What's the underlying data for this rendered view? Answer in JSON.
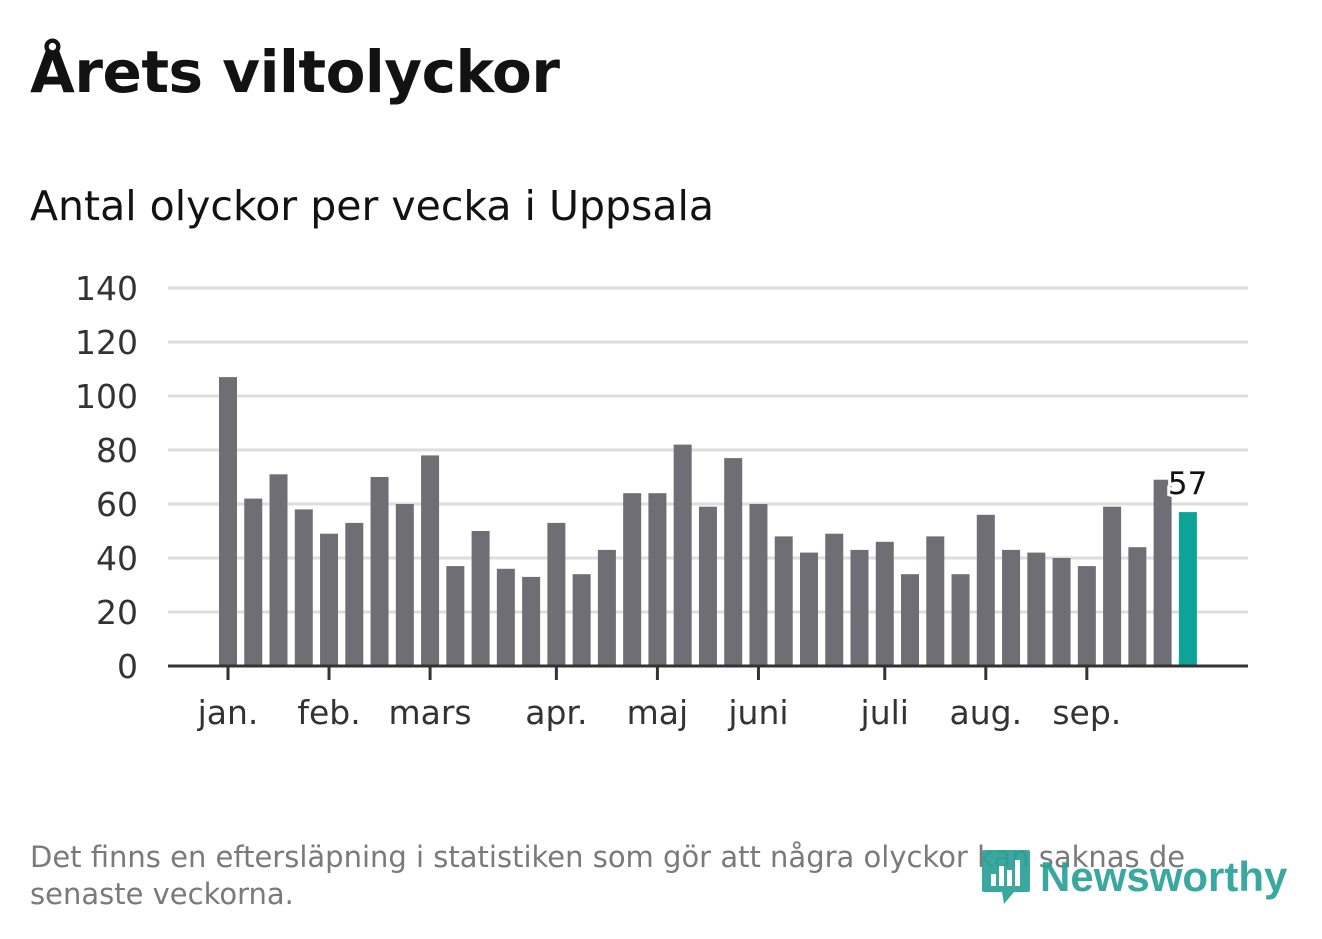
{
  "title": "Årets viltolyckor",
  "subtitle": "Antal olyckor per vecka i Uppsala",
  "note": "Det finns en eftersläpning i statistiken som gör att några olyckor kan saknas de senaste veckorna.",
  "logo": {
    "text": "Newsworthy",
    "icon": "newsworthy-bars-icon"
  },
  "colors": {
    "bar": "#6f6e74",
    "highlight": "#0ea396",
    "grid": "#dddddd",
    "axis": "#333333"
  },
  "chart_data": {
    "type": "bar",
    "title": "Antal olyckor per vecka i Uppsala",
    "xlabel": "",
    "ylabel": "",
    "ylim": [
      0,
      140
    ],
    "yticks": [
      0,
      20,
      40,
      60,
      80,
      100,
      120,
      140
    ],
    "grid": true,
    "weeks": [
      1,
      2,
      3,
      4,
      5,
      6,
      7,
      8,
      9,
      10,
      11,
      12,
      13,
      14,
      15,
      16,
      17,
      18,
      19,
      20,
      21,
      22,
      23,
      24,
      25,
      26,
      27,
      28,
      29,
      30,
      31,
      32,
      33,
      34,
      35,
      36,
      37,
      38,
      39
    ],
    "values": [
      107,
      62,
      71,
      58,
      49,
      53,
      70,
      60,
      78,
      37,
      50,
      36,
      33,
      53,
      34,
      43,
      64,
      64,
      82,
      59,
      77,
      60,
      48,
      42,
      49,
      43,
      46,
      34,
      48,
      34,
      56,
      43,
      42,
      40,
      37,
      59,
      44,
      69,
      57
    ],
    "highlight_index": 38,
    "data_labels": [
      {
        "index": 38,
        "text": "57"
      }
    ],
    "month_ticks": [
      {
        "label": "jan.",
        "week": 1
      },
      {
        "label": "feb.",
        "week": 5
      },
      {
        "label": "mars",
        "week": 9
      },
      {
        "label": "apr.",
        "week": 14
      },
      {
        "label": "maj",
        "week": 18
      },
      {
        "label": "juni",
        "week": 22
      },
      {
        "label": "juli",
        "week": 27
      },
      {
        "label": "aug.",
        "week": 31
      },
      {
        "label": "sep.",
        "week": 35
      }
    ]
  }
}
